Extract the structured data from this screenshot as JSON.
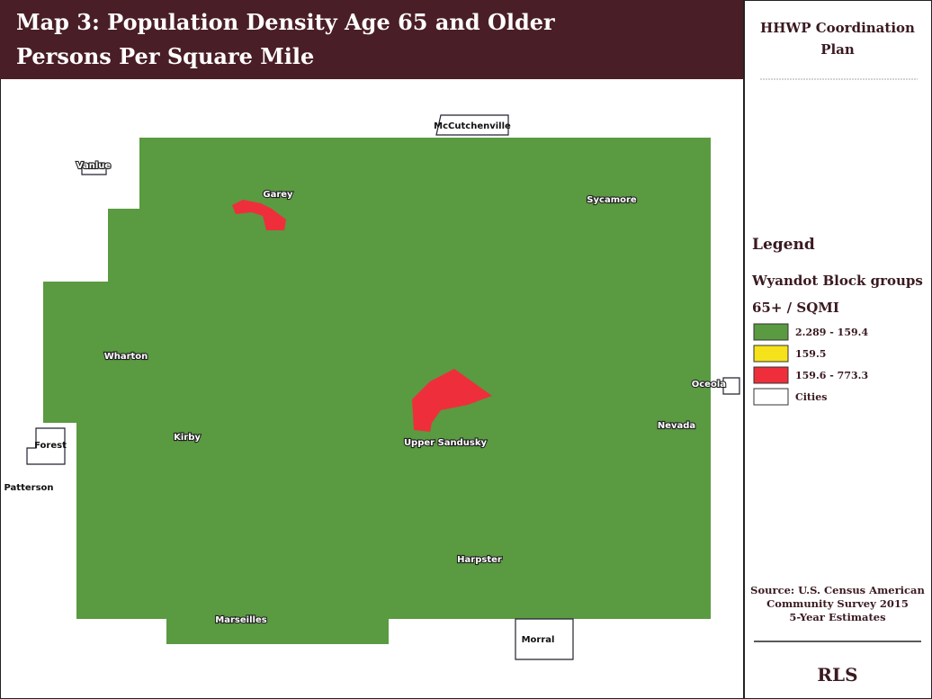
{
  "header": {
    "title_lines": [
      "Map 3: Population Density Age 65 and Older",
      "Persons Per Square Mile"
    ]
  },
  "sidebar": {
    "title_lines": [
      "HHWP Coordination",
      "Plan"
    ],
    "legend": {
      "heading": "Legend",
      "subheading": "Wyandot Block groups",
      "field": "65+ / SQMI",
      "items": [
        {
          "label": "2.289 - 159.4",
          "color": "#5a9a41"
        },
        {
          "label": "159.5",
          "color": "#f5e21a"
        },
        {
          "label": "159.6 - 773.3",
          "color": "#ee2f3b"
        },
        {
          "label": "Cities",
          "color": "#ffffff"
        }
      ]
    },
    "source_lines": [
      "Source: U.S. Census American",
      "Community Survey 2015",
      "5-Year Estimates"
    ],
    "logo": "RLS"
  },
  "map": {
    "cities": [
      "McCutchenville",
      "Vanlue",
      "Garey",
      "Sycamore",
      "Wharton",
      "Oceola",
      "Nevada",
      "Kirby",
      "Forest",
      "Upper Sandusky",
      "Patterson",
      "Harpster",
      "Marseilles",
      "Morral"
    ]
  }
}
